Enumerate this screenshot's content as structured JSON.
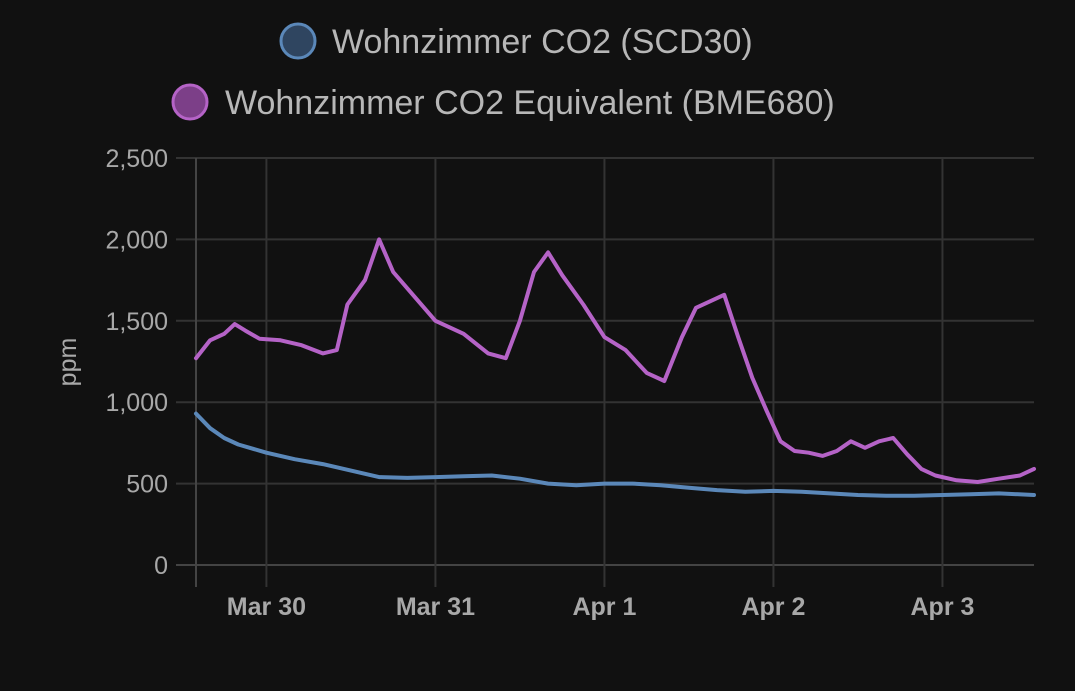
{
  "chart_data": {
    "type": "line",
    "ylabel": "ppm",
    "xlabel": "",
    "ylim": [
      0,
      2500
    ],
    "yticks": [
      "0",
      "500",
      "1,000",
      "1,500",
      "2,000",
      "2,500"
    ],
    "ytick_values": [
      0,
      500,
      1000,
      1500,
      2000,
      2500
    ],
    "xlim": [
      "2024-03-29 14:00",
      "2024-04-03 13:00"
    ],
    "xticks": [
      "Mar 30",
      "Mar 31",
      "Apr 1",
      "Apr 2",
      "Apr 3"
    ],
    "xtick_values": [
      "2024-03-30 00:00",
      "2024-03-31 00:00",
      "2024-04-01 00:00",
      "2024-04-02 00:00",
      "2024-04-03 00:00"
    ],
    "grid": true,
    "legend_position": "top",
    "series": [
      {
        "name": "Wohnzimmer CO2 (SCD30)",
        "color": "#5b88b9",
        "marker_color": "#2f4560",
        "x": [
          "2024-03-29 14:00",
          "2024-03-29 16:00",
          "2024-03-29 18:00",
          "2024-03-29 20:00",
          "2024-03-30 00:00",
          "2024-03-30 04:00",
          "2024-03-30 08:00",
          "2024-03-30 12:00",
          "2024-03-30 16:00",
          "2024-03-30 20:00",
          "2024-03-31 00:00",
          "2024-03-31 04:00",
          "2024-03-31 08:00",
          "2024-03-31 12:00",
          "2024-03-31 16:00",
          "2024-03-31 20:00",
          "2024-04-01 00:00",
          "2024-04-01 04:00",
          "2024-04-01 08:00",
          "2024-04-01 12:00",
          "2024-04-01 16:00",
          "2024-04-01 20:00",
          "2024-04-02 00:00",
          "2024-04-02 04:00",
          "2024-04-02 08:00",
          "2024-04-02 12:00",
          "2024-04-02 16:00",
          "2024-04-02 20:00",
          "2024-04-03 00:00",
          "2024-04-03 04:00",
          "2024-04-03 08:00",
          "2024-04-03 13:00"
        ],
        "y": [
          930,
          840,
          780,
          740,
          690,
          650,
          620,
          580,
          540,
          535,
          540,
          545,
          550,
          530,
          500,
          490,
          500,
          500,
          490,
          475,
          460,
          450,
          455,
          450,
          440,
          430,
          425,
          425,
          430,
          435,
          440,
          430
        ]
      },
      {
        "name": "Wohnzimmer CO2 Equivalent (BME680)",
        "color": "#b563c7",
        "marker_color": "#7c3f88",
        "x": [
          "2024-03-29 14:00",
          "2024-03-29 16:00",
          "2024-03-29 18:00",
          "2024-03-29 19:30",
          "2024-03-29 21:00",
          "2024-03-29 23:00",
          "2024-03-30 02:00",
          "2024-03-30 05:00",
          "2024-03-30 08:00",
          "2024-03-30 10:00",
          "2024-03-30 11:30",
          "2024-03-30 14:00",
          "2024-03-30 16:00",
          "2024-03-30 18:00",
          "2024-03-30 21:00",
          "2024-03-31 00:00",
          "2024-03-31 04:00",
          "2024-03-31 07:30",
          "2024-03-31 10:00",
          "2024-03-31 12:00",
          "2024-03-31 14:00",
          "2024-03-31 16:00",
          "2024-03-31 18:00",
          "2024-03-31 21:00",
          "2024-04-01 00:00",
          "2024-04-01 03:00",
          "2024-04-01 06:00",
          "2024-04-01 08:30",
          "2024-04-01 11:00",
          "2024-04-01 13:00",
          "2024-04-01 15:00",
          "2024-04-01 17:00",
          "2024-04-01 19:00",
          "2024-04-01 21:00",
          "2024-04-01 23:00",
          "2024-04-02 01:00",
          "2024-04-02 03:00",
          "2024-04-02 05:00",
          "2024-04-02 07:00",
          "2024-04-02 09:00",
          "2024-04-02 11:00",
          "2024-04-02 13:00",
          "2024-04-02 15:00",
          "2024-04-02 17:00",
          "2024-04-02 19:00",
          "2024-04-02 21:00",
          "2024-04-02 23:00",
          "2024-04-03 02:00",
          "2024-04-03 05:00",
          "2024-04-03 08:00",
          "2024-04-03 11:00",
          "2024-04-03 13:00"
        ],
        "y": [
          1270,
          1380,
          1420,
          1480,
          1440,
          1390,
          1380,
          1350,
          1300,
          1320,
          1600,
          1750,
          2000,
          1800,
          1650,
          1500,
          1420,
          1300,
          1270,
          1500,
          1800,
          1920,
          1780,
          1600,
          1400,
          1320,
          1180,
          1130,
          1400,
          1580,
          1620,
          1660,
          1400,
          1150,
          950,
          760,
          700,
          690,
          670,
          700,
          760,
          720,
          760,
          780,
          680,
          590,
          550,
          520,
          510,
          530,
          550,
          590
        ]
      }
    ]
  }
}
